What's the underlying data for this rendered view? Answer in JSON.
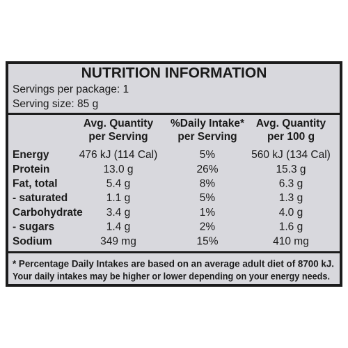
{
  "title": "NUTRITION INFORMATION",
  "servings_per_package": "Servings per package: 1",
  "serving_size": "Serving size: 85 g",
  "table": {
    "header": [
      [
        "Avg. Quantity",
        "per Serving"
      ],
      [
        "%Daily Intake*",
        "per Serving"
      ],
      [
        "Avg. Quantity",
        "per 100 g"
      ]
    ],
    "rows": [
      [
        "Energy",
        "476 kJ (114 Cal)",
        "5%",
        "560 kJ (134 Cal)"
      ],
      [
        "Protein",
        "13.0 g",
        "26%",
        "15.3 g"
      ],
      [
        "Fat, total",
        "5.4 g",
        "8%",
        "6.3 g"
      ],
      [
        "- saturated",
        "1.1 g",
        "5%",
        "1.3 g"
      ],
      [
        "Carbohydrate",
        "3.4 g",
        "1%",
        "4.0 g"
      ],
      [
        "- sugars",
        "1.4 g",
        "2%",
        "1.6 g"
      ],
      [
        "Sodium",
        "349 mg",
        "15%",
        "410 mg"
      ]
    ]
  },
  "footnote": [
    "* Percentage Daily Intakes are based on an average adult diet of 8700 kJ.",
    "Your daily intakes may be higher or lower depending on your energy needs."
  ]
}
